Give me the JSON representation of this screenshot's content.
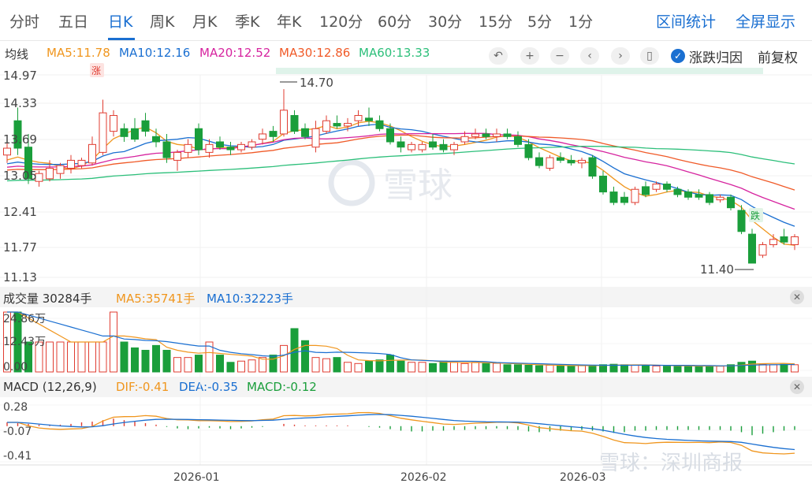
{
  "tabs": [
    {
      "label": "分时",
      "active": false
    },
    {
      "label": "五日",
      "active": false
    },
    {
      "label": "日K",
      "active": true
    },
    {
      "label": "周K",
      "active": false
    },
    {
      "label": "月K",
      "active": false
    },
    {
      "label": "季K",
      "active": false
    },
    {
      "label": "年K",
      "active": false
    },
    {
      "label": "120分",
      "active": false
    },
    {
      "label": "60分",
      "active": false
    },
    {
      "label": "30分",
      "active": false
    },
    {
      "label": "15分",
      "active": false
    },
    {
      "label": "5分",
      "active": false
    },
    {
      "label": "1分",
      "active": false
    }
  ],
  "tab_actions": {
    "range_stats": "区间统计",
    "fullscreen": "全屏显示"
  },
  "ma_legend": {
    "title": "均线",
    "items": [
      {
        "label": "MA5:11.78",
        "color": "#f0961e"
      },
      {
        "label": "MA10:12.16",
        "color": "#1a6fd1"
      },
      {
        "label": "MA20:12.52",
        "color": "#d6249f"
      },
      {
        "label": "MA30:12.86",
        "color": "#f05a28"
      },
      {
        "label": "MA60:13.33",
        "color": "#2cbf7a"
      }
    ]
  },
  "toolbar": {
    "icons": [
      "undo-icon",
      "zoom-in-icon",
      "zoom-out-icon",
      "scroll-left-icon",
      "scroll-right-icon",
      "candle-icon"
    ],
    "attribution_label": "涨跌归因",
    "adjust_label": "前复权"
  },
  "colors": {
    "up": "#e03c31",
    "down": "#1a9e3b",
    "accent": "#1a6fd1"
  },
  "price_axis": {
    "ticks": [
      "14.97",
      "14.33",
      "13.69",
      "13.05",
      "12.41",
      "11.77",
      "11.13"
    ]
  },
  "annotations": {
    "high": "14.70",
    "low": "11.40",
    "up_tag": "涨",
    "down_tag": "跌"
  },
  "volume_legend": {
    "title": "成交量 30284手",
    "items": [
      {
        "label": "MA5:35741手",
        "color": "#f0961e"
      },
      {
        "label": "MA10:32223手",
        "color": "#1a6fd1"
      }
    ],
    "ticks": [
      "24.86万",
      "12.43万",
      "0.00"
    ]
  },
  "macd_legend": {
    "title": "MACD (12,26,9)",
    "items": [
      {
        "label": "DIF:-0.41",
        "color": "#f0961e"
      },
      {
        "label": "DEA:-0.35",
        "color": "#1a6fd1"
      },
      {
        "label": "MACD:-0.12",
        "color": "#1a9e3b"
      }
    ],
    "ticks": [
      "0.28",
      "-0.07",
      "-0.41"
    ]
  },
  "date_axis": [
    "2026-01",
    "2026-02",
    "2026-03"
  ],
  "watermark": {
    "center": "雪球",
    "corner": "雪球：深圳商报"
  },
  "chart_data": {
    "type": "candlestick",
    "price_range": [
      11.13,
      14.97
    ],
    "candles": [
      {
        "o": 13.45,
        "h": 13.7,
        "c": 13.58,
        "l": 13.3
      },
      {
        "o": 14.1,
        "h": 14.35,
        "c": 13.58,
        "l": 13.45
      },
      {
        "o": 13.6,
        "h": 13.85,
        "c": 13.0,
        "l": 12.9
      },
      {
        "o": 12.95,
        "h": 13.15,
        "c": 13.1,
        "l": 12.85
      },
      {
        "o": 13.0,
        "h": 13.35,
        "c": 13.2,
        "l": 12.95
      },
      {
        "o": 13.1,
        "h": 13.3,
        "c": 13.25,
        "l": 13.0
      },
      {
        "o": 13.2,
        "h": 13.45,
        "c": 13.35,
        "l": 13.1
      },
      {
        "o": 13.25,
        "h": 13.4,
        "c": 13.35,
        "l": 13.2
      },
      {
        "o": 13.3,
        "h": 13.8,
        "c": 13.65,
        "l": 13.25
      },
      {
        "o": 13.5,
        "h": 14.5,
        "c": 14.25,
        "l": 13.45
      },
      {
        "o": 13.9,
        "h": 14.3,
        "c": 14.2,
        "l": 13.8
      },
      {
        "o": 13.95,
        "h": 14.05,
        "c": 13.8,
        "l": 13.7
      },
      {
        "o": 13.95,
        "h": 14.15,
        "c": 13.75,
        "l": 13.7
      },
      {
        "o": 14.1,
        "h": 14.25,
        "c": 13.9,
        "l": 13.8
      },
      {
        "o": 13.8,
        "h": 13.95,
        "c": 13.7,
        "l": 13.6
      },
      {
        "o": 13.7,
        "h": 13.85,
        "c": 13.4,
        "l": 13.3
      },
      {
        "o": 13.35,
        "h": 13.55,
        "c": 13.5,
        "l": 13.15
      },
      {
        "o": 13.5,
        "h": 13.75,
        "c": 13.65,
        "l": 13.4
      },
      {
        "o": 13.95,
        "h": 14.05,
        "c": 13.55,
        "l": 13.45
      },
      {
        "o": 13.5,
        "h": 13.75,
        "c": 13.65,
        "l": 13.4
      },
      {
        "o": 13.7,
        "h": 13.8,
        "c": 13.6,
        "l": 13.55
      },
      {
        "o": 13.6,
        "h": 13.7,
        "c": 13.55,
        "l": 13.45
      },
      {
        "o": 13.55,
        "h": 13.7,
        "c": 13.65,
        "l": 13.5
      },
      {
        "o": 13.6,
        "h": 13.75,
        "c": 13.7,
        "l": 13.55
      },
      {
        "o": 13.75,
        "h": 13.95,
        "c": 13.85,
        "l": 13.65
      },
      {
        "o": 13.9,
        "h": 14.0,
        "c": 13.8,
        "l": 13.7
      },
      {
        "o": 13.85,
        "h": 14.7,
        "c": 14.3,
        "l": 13.8
      },
      {
        "o": 14.2,
        "h": 14.3,
        "c": 13.9,
        "l": 13.85
      },
      {
        "o": 13.95,
        "h": 14.05,
        "c": 13.8,
        "l": 13.75
      },
      {
        "o": 13.6,
        "h": 14.1,
        "c": 13.95,
        "l": 13.5
      },
      {
        "o": 13.9,
        "h": 14.2,
        "c": 14.1,
        "l": 13.85
      },
      {
        "o": 14.05,
        "h": 14.2,
        "c": 14.0,
        "l": 13.95
      },
      {
        "o": 14.0,
        "h": 14.15,
        "c": 14.05,
        "l": 13.9
      },
      {
        "o": 14.1,
        "h": 14.3,
        "c": 14.2,
        "l": 14.0
      },
      {
        "o": 14.15,
        "h": 14.35,
        "c": 14.1,
        "l": 14.0
      },
      {
        "o": 14.1,
        "h": 14.2,
        "c": 13.95,
        "l": 13.9
      },
      {
        "o": 13.95,
        "h": 14.05,
        "c": 13.7,
        "l": 13.65
      },
      {
        "o": 13.7,
        "h": 13.8,
        "c": 13.6,
        "l": 13.5
      },
      {
        "o": 13.55,
        "h": 13.7,
        "c": 13.65,
        "l": 13.5
      },
      {
        "o": 13.55,
        "h": 13.7,
        "c": 13.65,
        "l": 13.5
      },
      {
        "o": 13.7,
        "h": 13.85,
        "c": 13.6,
        "l": 13.55
      },
      {
        "o": 13.65,
        "h": 13.75,
        "c": 13.55,
        "l": 13.5
      },
      {
        "o": 13.55,
        "h": 13.7,
        "c": 13.65,
        "l": 13.45
      },
      {
        "o": 13.7,
        "h": 13.9,
        "c": 13.8,
        "l": 13.65
      },
      {
        "o": 13.8,
        "h": 13.95,
        "c": 13.85,
        "l": 13.75
      },
      {
        "o": 13.85,
        "h": 13.95,
        "c": 13.8,
        "l": 13.75
      },
      {
        "o": 13.8,
        "h": 13.95,
        "c": 13.85,
        "l": 13.7
      },
      {
        "o": 13.85,
        "h": 13.95,
        "c": 13.8,
        "l": 13.75
      },
      {
        "o": 13.8,
        "h": 13.9,
        "c": 13.65,
        "l": 13.6
      },
      {
        "o": 13.65,
        "h": 13.75,
        "c": 13.4,
        "l": 13.35
      },
      {
        "o": 13.4,
        "h": 13.5,
        "c": 13.25,
        "l": 13.2
      },
      {
        "o": 13.2,
        "h": 13.45,
        "c": 13.4,
        "l": 13.15
      },
      {
        "o": 13.4,
        "h": 13.5,
        "c": 13.35,
        "l": 13.3
      },
      {
        "o": 13.35,
        "h": 13.45,
        "c": 13.3,
        "l": 13.25
      },
      {
        "o": 13.3,
        "h": 13.4,
        "c": 13.35,
        "l": 13.2
      },
      {
        "o": 13.4,
        "h": 13.45,
        "c": 13.05,
        "l": 13.0
      },
      {
        "o": 13.05,
        "h": 13.15,
        "c": 12.75,
        "l": 12.7
      },
      {
        "o": 12.75,
        "h": 12.85,
        "c": 12.55,
        "l": 12.5
      },
      {
        "o": 12.65,
        "h": 12.75,
        "c": 12.55,
        "l": 12.5
      },
      {
        "o": 12.55,
        "h": 12.85,
        "c": 12.8,
        "l": 12.5
      },
      {
        "o": 12.85,
        "h": 12.95,
        "c": 12.7,
        "l": 12.65
      },
      {
        "o": 12.8,
        "h": 12.95,
        "c": 12.9,
        "l": 12.75
      },
      {
        "o": 12.9,
        "h": 12.95,
        "c": 12.8,
        "l": 12.75
      },
      {
        "o": 12.8,
        "h": 12.85,
        "c": 12.7,
        "l": 12.65
      },
      {
        "o": 12.75,
        "h": 12.8,
        "c": 12.65,
        "l": 12.6
      },
      {
        "o": 12.7,
        "h": 12.8,
        "c": 12.65,
        "l": 12.6
      },
      {
        "o": 12.7,
        "h": 12.75,
        "c": 12.55,
        "l": 12.5
      },
      {
        "o": 12.6,
        "h": 12.7,
        "c": 12.65,
        "l": 12.55
      },
      {
        "o": 12.65,
        "h": 12.7,
        "c": 12.45,
        "l": 12.4
      },
      {
        "o": 12.4,
        "h": 12.5,
        "c": 12.0,
        "l": 11.95
      },
      {
        "o": 11.95,
        "h": 12.05,
        "c": 11.4,
        "l": 11.4
      },
      {
        "o": 11.55,
        "h": 11.8,
        "c": 11.75,
        "l": 11.5
      },
      {
        "o": 11.75,
        "h": 11.95,
        "c": 11.85,
        "l": 11.7
      },
      {
        "o": 11.9,
        "h": 12.05,
        "c": 11.8,
        "l": 11.75
      },
      {
        "o": 11.75,
        "h": 11.95,
        "c": 11.9,
        "l": 11.65
      }
    ],
    "volume_range": [
      0,
      248600
    ],
    "volume": [
      248600,
      248600,
      124300,
      124300,
      124300,
      124300,
      124300,
      124300,
      124300,
      124300,
      248600,
      124300,
      100000,
      90000,
      110000,
      90000,
      60000,
      60000,
      70000,
      124300,
      70000,
      40000,
      45000,
      50000,
      60000,
      70000,
      110000,
      180000,
      130000,
      60000,
      55000,
      60000,
      40000,
      35000,
      45000,
      50000,
      70000,
      45000,
      40000,
      40000,
      35000,
      45000,
      40000,
      35000,
      40000,
      35000,
      36000,
      30000,
      30000,
      28000,
      26000,
      28000,
      26000,
      25000,
      26000,
      28000,
      30000,
      32000,
      30000,
      28000,
      27000,
      25000,
      24000,
      26000,
      24000,
      23000,
      25000,
      24000,
      30000,
      40000,
      45000,
      32000,
      30000,
      32000,
      30000
    ],
    "macd_range": [
      -0.41,
      0.28
    ],
    "macd_hist": [
      0.05,
      0.04,
      0.03,
      0.02,
      0.02,
      0.02,
      0.03,
      0.05,
      0.06,
      0.08,
      0.1,
      0.08,
      0.06,
      0.04,
      0.02,
      -0.01,
      -0.03,
      -0.04,
      -0.03,
      -0.02,
      -0.03,
      -0.04,
      -0.03,
      -0.02,
      -0.01,
      0.0,
      0.03,
      0.02,
      0.01,
      0.01,
      0.01,
      0.01,
      0.01,
      0.0,
      -0.01,
      -0.02,
      -0.04,
      -0.06,
      -0.07,
      -0.07,
      -0.06,
      -0.06,
      -0.05,
      -0.05,
      -0.04,
      -0.04,
      -0.03,
      -0.04,
      -0.05,
      -0.07,
      -0.08,
      -0.07,
      -0.06,
      -0.06,
      -0.05,
      -0.06,
      -0.07,
      -0.09,
      -0.08,
      -0.06,
      -0.06,
      -0.05,
      -0.05,
      -0.05,
      -0.05,
      -0.05,
      -0.05,
      -0.05,
      -0.06,
      -0.08,
      -0.12,
      -0.1,
      -0.08,
      -0.06,
      -0.05
    ]
  }
}
